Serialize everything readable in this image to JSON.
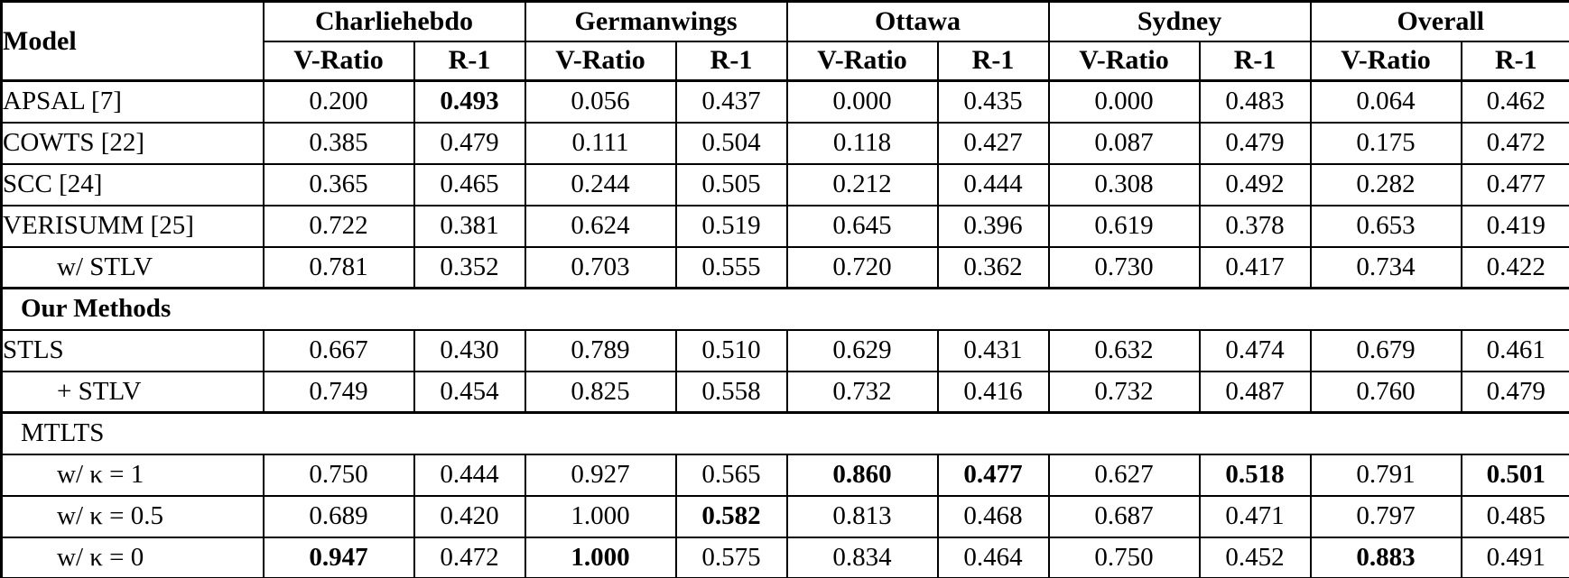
{
  "table": {
    "header": {
      "model_label": "Model",
      "groups": [
        {
          "label": "Charliehebdo"
        },
        {
          "label": "Germanwings"
        },
        {
          "label": "Ottawa"
        },
        {
          "label": "Sydney"
        },
        {
          "label": "Overall"
        }
      ],
      "metric_labels": [
        "V-Ratio",
        "R-1"
      ]
    },
    "colors": {
      "border": "#000000",
      "text": "#000000",
      "background": "#ffffff"
    },
    "rows": [
      {
        "type": "data",
        "model": "APSAL [7]",
        "indent": false,
        "values": [
          "0.200",
          "0.493",
          "0.056",
          "0.437",
          "0.000",
          "0.435",
          "0.000",
          "0.483",
          "0.064",
          "0.462"
        ],
        "bold": [
          false,
          true,
          false,
          false,
          false,
          false,
          false,
          false,
          false,
          false
        ]
      },
      {
        "type": "data",
        "model": "COWTS [22]",
        "indent": false,
        "values": [
          "0.385",
          "0.479",
          "0.111",
          "0.504",
          "0.118",
          "0.427",
          "0.087",
          "0.479",
          "0.175",
          "0.472"
        ],
        "bold": [
          false,
          false,
          false,
          false,
          false,
          false,
          false,
          false,
          false,
          false
        ]
      },
      {
        "type": "data",
        "model": "SCC [24]",
        "indent": false,
        "values": [
          "0.365",
          "0.465",
          "0.244",
          "0.505",
          "0.212",
          "0.444",
          "0.308",
          "0.492",
          "0.282",
          "0.477"
        ],
        "bold": [
          false,
          false,
          false,
          false,
          false,
          false,
          false,
          false,
          false,
          false
        ]
      },
      {
        "type": "data",
        "model": "VERISUMM [25]",
        "indent": false,
        "values": [
          "0.722",
          "0.381",
          "0.624",
          "0.519",
          "0.645",
          "0.396",
          "0.619",
          "0.378",
          "0.653",
          "0.419"
        ],
        "bold": [
          false,
          false,
          false,
          false,
          false,
          false,
          false,
          false,
          false,
          false
        ]
      },
      {
        "type": "data",
        "model": "w/ STLV",
        "indent": true,
        "values": [
          "0.781",
          "0.352",
          "0.703",
          "0.555",
          "0.720",
          "0.362",
          "0.730",
          "0.417",
          "0.734",
          "0.422"
        ],
        "bold": [
          false,
          false,
          false,
          false,
          false,
          false,
          false,
          false,
          false,
          false
        ]
      },
      {
        "type": "section",
        "model": "Our Methods",
        "section_bold": true
      },
      {
        "type": "data",
        "model": "STLS",
        "indent": false,
        "values": [
          "0.667",
          "0.430",
          "0.789",
          "0.510",
          "0.629",
          "0.431",
          "0.632",
          "0.474",
          "0.679",
          "0.461"
        ],
        "bold": [
          false,
          false,
          false,
          false,
          false,
          false,
          false,
          false,
          false,
          false
        ]
      },
      {
        "type": "data",
        "model": "+ STLV",
        "indent": true,
        "values": [
          "0.749",
          "0.454",
          "0.825",
          "0.558",
          "0.732",
          "0.416",
          "0.732",
          "0.487",
          "0.760",
          "0.479"
        ],
        "bold": [
          false,
          false,
          false,
          false,
          false,
          false,
          false,
          false,
          false,
          false
        ]
      },
      {
        "type": "section",
        "model": "MTLTS",
        "section_bold": false
      },
      {
        "type": "data",
        "model": "w/ κ = 1",
        "indent": true,
        "values": [
          "0.750",
          "0.444",
          "0.927",
          "0.565",
          "0.860",
          "0.477",
          "0.627",
          "0.518",
          "0.791",
          "0.501"
        ],
        "bold": [
          false,
          false,
          false,
          false,
          true,
          true,
          false,
          true,
          false,
          true
        ]
      },
      {
        "type": "data",
        "model": "w/ κ = 0.5",
        "indent": true,
        "values": [
          "0.689",
          "0.420",
          "1.000",
          "0.582",
          "0.813",
          "0.468",
          "0.687",
          "0.471",
          "0.797",
          "0.485"
        ],
        "bold": [
          false,
          false,
          false,
          true,
          false,
          false,
          false,
          false,
          false,
          false
        ]
      },
      {
        "type": "data",
        "model": "w/ κ = 0",
        "indent": true,
        "values": [
          "0.947",
          "0.472",
          "1.000",
          "0.575",
          "0.834",
          "0.464",
          "0.750",
          "0.452",
          "0.883",
          "0.491"
        ],
        "bold": [
          true,
          false,
          true,
          false,
          false,
          false,
          false,
          false,
          true,
          false
        ]
      }
    ]
  }
}
